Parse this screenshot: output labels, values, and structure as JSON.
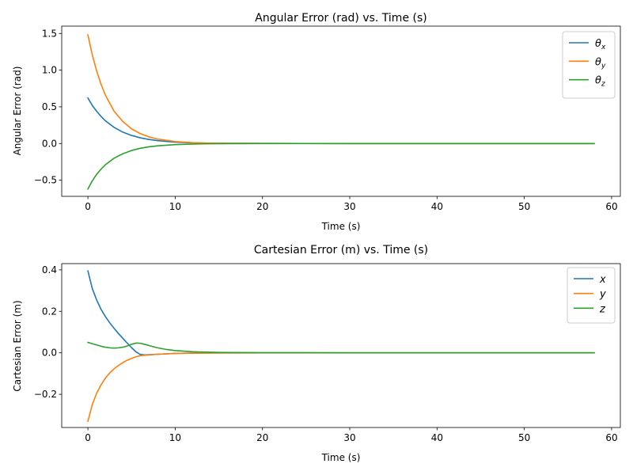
{
  "chart_data": [
    {
      "type": "line",
      "title": "Angular Error (rad) vs. Time (s)",
      "xlabel": "Time (s)",
      "ylabel": "Angular Error (rad)",
      "xlim": [
        -3,
        61
      ],
      "ylim": [
        -0.72,
        1.6
      ],
      "xticks": [
        0,
        10,
        20,
        30,
        40,
        50,
        60
      ],
      "xtick_labels": [
        "0",
        "10",
        "20",
        "30",
        "40",
        "50",
        "60"
      ],
      "yticks": [
        -0.5,
        0.0,
        0.5,
        1.0,
        1.5
      ],
      "ytick_labels": [
        "−0.5",
        "0.0",
        "0.5",
        "1.0",
        "1.5"
      ],
      "legend_position": "top-right",
      "grid": false,
      "series": [
        {
          "name": "θx",
          "base": "θ",
          "sub": "x",
          "color": "#1f77b4",
          "x": [
            0,
            0.5,
            1,
            1.5,
            2,
            3,
            4,
            5,
            6,
            7,
            8,
            10,
            12,
            14,
            16,
            20,
            30,
            40,
            50,
            58
          ],
          "y": [
            0.62,
            0.52,
            0.44,
            0.37,
            0.31,
            0.22,
            0.155,
            0.11,
            0.078,
            0.055,
            0.039,
            0.019,
            0.009,
            0.004,
            0.002,
            0.0005,
            0,
            0,
            0,
            0
          ]
        },
        {
          "name": "θy",
          "base": "θ",
          "sub": "y",
          "color": "#ff7f0e",
          "x": [
            0,
            0.5,
            1,
            1.5,
            2,
            3,
            4,
            5,
            6,
            7,
            8,
            10,
            12,
            14,
            16,
            20,
            30,
            40,
            50,
            58
          ],
          "y": [
            1.48,
            1.21,
            0.99,
            0.81,
            0.66,
            0.44,
            0.3,
            0.2,
            0.135,
            0.09,
            0.06,
            0.027,
            0.012,
            0.005,
            0.002,
            0.0005,
            0,
            0,
            0,
            0
          ]
        },
        {
          "name": "θz",
          "base": "θ",
          "sub": "z",
          "color": "#2ca02c",
          "x": [
            0,
            0.5,
            1,
            1.5,
            2,
            3,
            4,
            5,
            6,
            7,
            8,
            10,
            12,
            14,
            16,
            20,
            30,
            40,
            50,
            58
          ],
          "y": [
            -0.62,
            -0.51,
            -0.42,
            -0.35,
            -0.29,
            -0.2,
            -0.14,
            -0.095,
            -0.065,
            -0.045,
            -0.031,
            -0.015,
            -0.007,
            -0.003,
            -0.0015,
            -0.0004,
            0,
            0,
            0,
            0
          ]
        }
      ]
    },
    {
      "type": "line",
      "title": "Cartesian Error (m) vs. Time (s)",
      "xlabel": "Time (s)",
      "ylabel": "Cartesian Error (m)",
      "xlim": [
        -3,
        61
      ],
      "ylim": [
        -0.36,
        0.43
      ],
      "xticks": [
        0,
        10,
        20,
        30,
        40,
        50,
        60
      ],
      "xtick_labels": [
        "0",
        "10",
        "20",
        "30",
        "40",
        "50",
        "60"
      ],
      "yticks": [
        -0.2,
        0.0,
        0.2,
        0.4
      ],
      "ytick_labels": [
        "−0.2",
        "0.0",
        "0.2",
        "0.4"
      ],
      "legend_position": "top-right",
      "grid": false,
      "series": [
        {
          "name": "x",
          "base": "x",
          "sub": "",
          "color": "#1f77b4",
          "x": [
            0,
            0.5,
            1,
            1.5,
            2,
            2.5,
            3,
            3.5,
            4,
            4.5,
            5,
            5.5,
            6,
            6.5,
            7,
            8,
            10,
            12,
            15,
            20,
            30,
            40,
            50,
            58
          ],
          "y": [
            0.395,
            0.31,
            0.255,
            0.21,
            0.175,
            0.145,
            0.118,
            0.093,
            0.07,
            0.047,
            0.025,
            0.005,
            -0.008,
            -0.01,
            -0.009,
            -0.007,
            -0.003,
            -0.0015,
            -0.0005,
            0,
            0,
            0,
            0,
            0
          ]
        },
        {
          "name": "y",
          "base": "y",
          "sub": "",
          "color": "#ff7f0e",
          "x": [
            0,
            0.5,
            1,
            1.5,
            2,
            2.5,
            3,
            3.5,
            4,
            4.5,
            5,
            5.5,
            6,
            7,
            8,
            10,
            12,
            15,
            20,
            30,
            40,
            50,
            58
          ],
          "y": [
            -0.33,
            -0.25,
            -0.195,
            -0.155,
            -0.122,
            -0.097,
            -0.077,
            -0.061,
            -0.047,
            -0.036,
            -0.027,
            -0.019,
            -0.014,
            -0.01,
            -0.007,
            -0.003,
            -0.0015,
            -0.0005,
            0,
            0,
            0,
            0,
            0
          ]
        },
        {
          "name": "z",
          "base": "z",
          "sub": "",
          "color": "#2ca02c",
          "x": [
            0,
            0.5,
            1,
            1.5,
            2,
            2.5,
            3,
            3.5,
            4,
            4.5,
            5,
            5.5,
            6,
            6.5,
            7,
            8,
            9,
            10,
            12,
            15,
            20,
            30,
            40,
            50,
            58
          ],
          "y": [
            0.05,
            0.044,
            0.038,
            0.032,
            0.027,
            0.024,
            0.023,
            0.024,
            0.027,
            0.033,
            0.041,
            0.047,
            0.046,
            0.041,
            0.035,
            0.024,
            0.016,
            0.011,
            0.005,
            0.002,
            0.0005,
            0,
            0,
            0,
            0
          ]
        }
      ]
    }
  ]
}
